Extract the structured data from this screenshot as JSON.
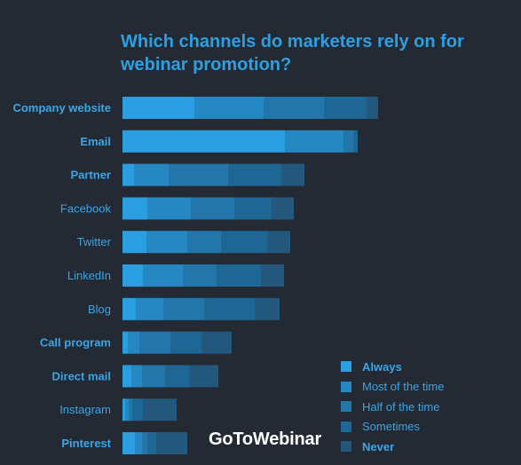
{
  "title": "Which channels do marketers rely on for webinar promotion?",
  "brand": "GoToWebinar",
  "colors": {
    "background": "#232a34",
    "text": "#3aa6e8",
    "series": [
      "#2a9ee0",
      "#2688c2",
      "#2276aa",
      "#1e6694",
      "#23587c"
    ]
  },
  "chart_data": {
    "type": "bar",
    "orientation": "horizontal",
    "stacked": true,
    "categories": [
      "Company website",
      "Email",
      "Partner",
      "Facebook",
      "Twitter",
      "LinkedIn",
      "Blog",
      "Call program",
      "Direct mail",
      "Instagram",
      "Pinterest"
    ],
    "bold_categories": [
      "Company website",
      "Email",
      "Partner",
      "Call program",
      "Direct mail",
      "Pinterest"
    ],
    "series": [
      {
        "name": "Always",
        "values": [
          81,
          183,
          13,
          28,
          27,
          23,
          15,
          6,
          10,
          3,
          14
        ]
      },
      {
        "name": "Most of the time",
        "values": [
          78,
          66,
          39,
          49,
          46,
          45,
          31,
          13,
          12,
          4,
          8
        ]
      },
      {
        "name": "Half of the time",
        "values": [
          68,
          11,
          67,
          49,
          38,
          38,
          46,
          35,
          26,
          4,
          6
        ]
      },
      {
        "name": "Sometimes",
        "values": [
          48,
          5,
          60,
          42,
          52,
          50,
          57,
          35,
          27,
          12,
          10
        ]
      },
      {
        "name": "Never",
        "values": [
          13,
          0,
          26,
          25,
          26,
          26,
          28,
          34,
          33,
          38,
          35
        ]
      }
    ],
    "legend": {
      "position": "bottom-right",
      "bold": [
        "Always",
        "Never"
      ]
    },
    "grid": false
  }
}
